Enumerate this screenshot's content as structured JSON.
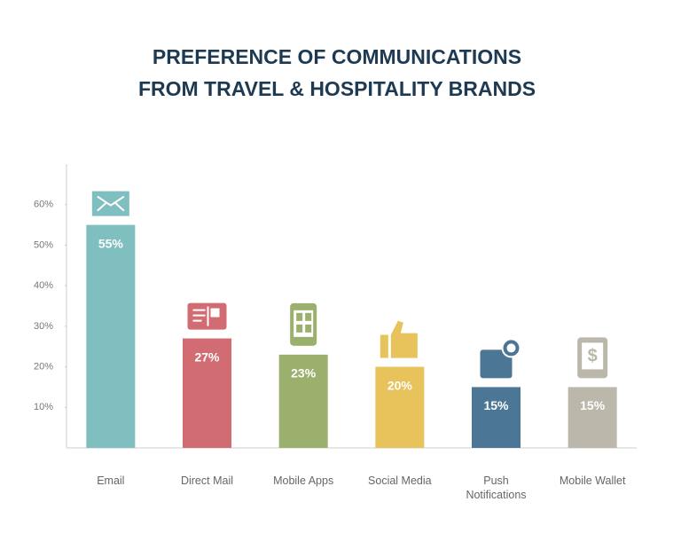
{
  "chart_data": {
    "type": "bar",
    "title": [
      "PREFERENCE OF COMMUNICATIONS",
      "FROM TRAVEL & HOSPITALITY BRANDS"
    ],
    "categories": [
      "Email",
      "Direct Mail",
      "Mobile Apps",
      "Social Media",
      "Push Notifications",
      "Mobile Wallet"
    ],
    "values": [
      55,
      27,
      23,
      20,
      15,
      15
    ],
    "value_labels": [
      "55%",
      "27%",
      "23%",
      "20%",
      "15%",
      "15%"
    ],
    "colors": [
      "#7fbfbf",
      "#d16c73",
      "#9bb06c",
      "#e8c35c",
      "#4b7696",
      "#bbb7aa"
    ],
    "ylim": [
      0,
      70
    ],
    "yticks": [
      {
        "value": 10,
        "label": "10%"
      },
      {
        "value": 20,
        "label": "20%"
      },
      {
        "value": 30,
        "label": "30%"
      },
      {
        "value": 40,
        "label": "40%"
      },
      {
        "value": 50,
        "label": "50%"
      },
      {
        "value": 60,
        "label": "60%"
      }
    ]
  }
}
